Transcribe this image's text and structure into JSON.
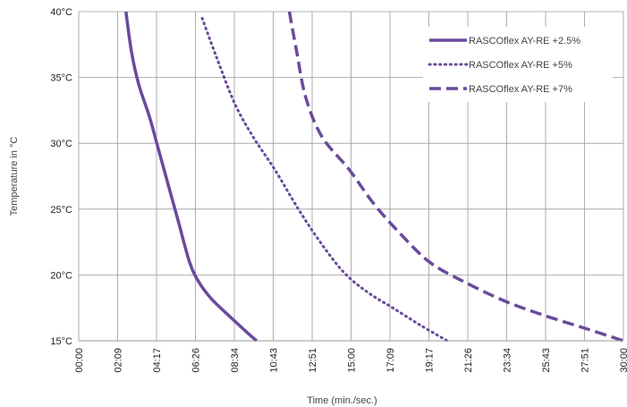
{
  "chart_data": {
    "type": "line",
    "xlabel": "Time (min./sec.)",
    "ylabel": "Temperature in °C",
    "x_tick_labels": [
      "00:00",
      "02:09",
      "04:17",
      "06:26",
      "08:34",
      "10:43",
      "12:51",
      "15:00",
      "17:09",
      "19:17",
      "21:26",
      "23:34",
      "25:43",
      "27:51",
      "30:00"
    ],
    "y_tick_labels": [
      "15°C",
      "20°C",
      "25°C",
      "30°C",
      "35°C",
      "40°C"
    ],
    "xlim": [
      0,
      30
    ],
    "ylim": [
      15,
      40
    ],
    "y_ticks": [
      15,
      20,
      25,
      30,
      35,
      40
    ],
    "grid": true,
    "legend_position": "top-right",
    "series": [
      {
        "name": "RASCOflex AY-RE +2.5%",
        "style": "solid",
        "color": "#6a4a9c",
        "points": [
          [
            2.6,
            40
          ],
          [
            2.9,
            37
          ],
          [
            3.3,
            34.5
          ],
          [
            3.9,
            32
          ],
          [
            4.3,
            30
          ],
          [
            4.9,
            27
          ],
          [
            5.5,
            24
          ],
          [
            6.1,
            21
          ],
          [
            6.6,
            19.5
          ],
          [
            7.3,
            18.2
          ],
          [
            8.2,
            17
          ],
          [
            9.3,
            15.6
          ],
          [
            9.8,
            15
          ]
        ]
      },
      {
        "name": "RASCOflex AY-RE +5%",
        "style": "dotted",
        "color": "#6a4a9c",
        "points": [
          [
            6.8,
            39.5
          ],
          [
            7.6,
            36.5
          ],
          [
            8.6,
            33
          ],
          [
            9.6,
            30.5
          ],
          [
            10.8,
            28
          ],
          [
            12.1,
            25
          ],
          [
            13.3,
            22.5
          ],
          [
            14.6,
            20.2
          ],
          [
            15.9,
            18.7
          ],
          [
            17.3,
            17.5
          ],
          [
            18.8,
            16.2
          ],
          [
            20.3,
            15
          ]
        ]
      },
      {
        "name": "RASCOflex AY-RE +7%",
        "style": "dashed",
        "color": "#6a4a9c",
        "points": [
          [
            11.6,
            40
          ],
          [
            12.0,
            37
          ],
          [
            12.5,
            33.5
          ],
          [
            13.4,
            30.5
          ],
          [
            14.9,
            28
          ],
          [
            16.2,
            25.5
          ],
          [
            17.6,
            23.3
          ],
          [
            19.3,
            21
          ],
          [
            21.2,
            19.5
          ],
          [
            23.5,
            18
          ],
          [
            25.7,
            16.9
          ],
          [
            28.0,
            15.9
          ],
          [
            30.0,
            15
          ]
        ]
      }
    ]
  }
}
